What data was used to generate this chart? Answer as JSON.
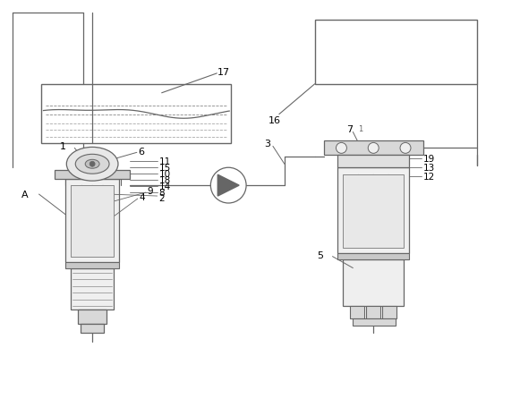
{
  "bg_color": "#ffffff",
  "lc": "#666666",
  "lc2": "#888888",
  "lc_light": "#aaaaaa",
  "fig_width": 5.81,
  "fig_height": 4.56,
  "dpi": 100
}
